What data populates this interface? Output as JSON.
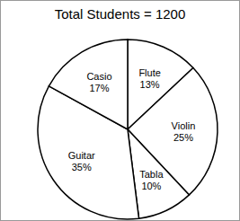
{
  "chart_data": {
    "type": "pie",
    "title": "Total Students = 1200",
    "categories": [
      "Flute",
      "Violin",
      "Tabla",
      "Guitar",
      "Casio"
    ],
    "values": [
      13,
      25,
      10,
      35,
      17
    ],
    "value_labels": [
      "13%",
      "25%",
      "10%",
      "35%",
      "17%"
    ],
    "data_labels": true,
    "color": "#ffffff"
  }
}
